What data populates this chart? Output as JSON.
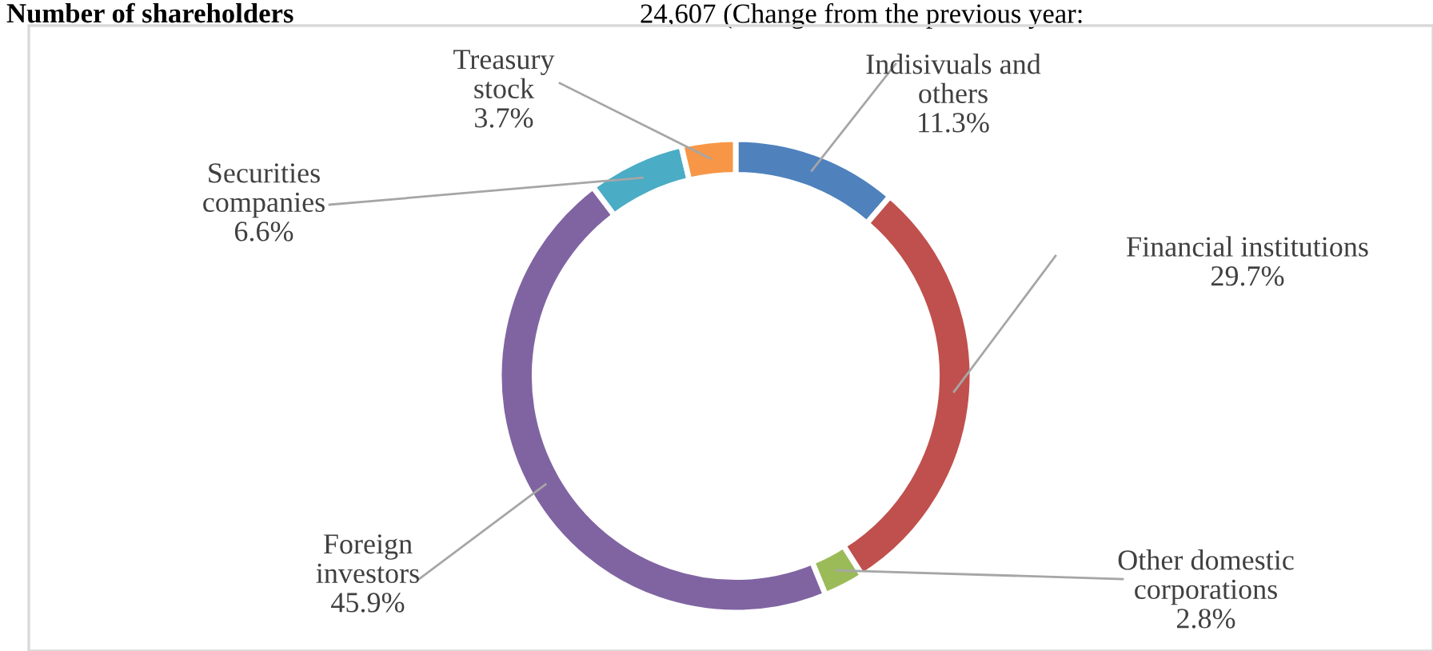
{
  "chart_data": {
    "type": "donut",
    "title": "Number of shareholders",
    "annotations": [
      "24,607 (Change from the previous year:"
    ],
    "categories": [
      "Indisivuals and\nothers",
      "Financial institutions",
      "Other domestic\ncorporations",
      "Foreign\ninvestors",
      "Securities\ncompanies",
      "Treasury\nstock"
    ],
    "values": [
      11.3,
      29.7,
      2.8,
      45.9,
      6.6,
      3.7
    ],
    "colors": [
      "#4f81bd",
      "#c0504d",
      "#9bbb59",
      "#8064a2",
      "#4bacc6",
      "#f79646"
    ],
    "value_labels": [
      "11.3%",
      "29.7%",
      "2.8%",
      "45.9%",
      "6.6%",
      "3.7%"
    ],
    "legend": false
  }
}
